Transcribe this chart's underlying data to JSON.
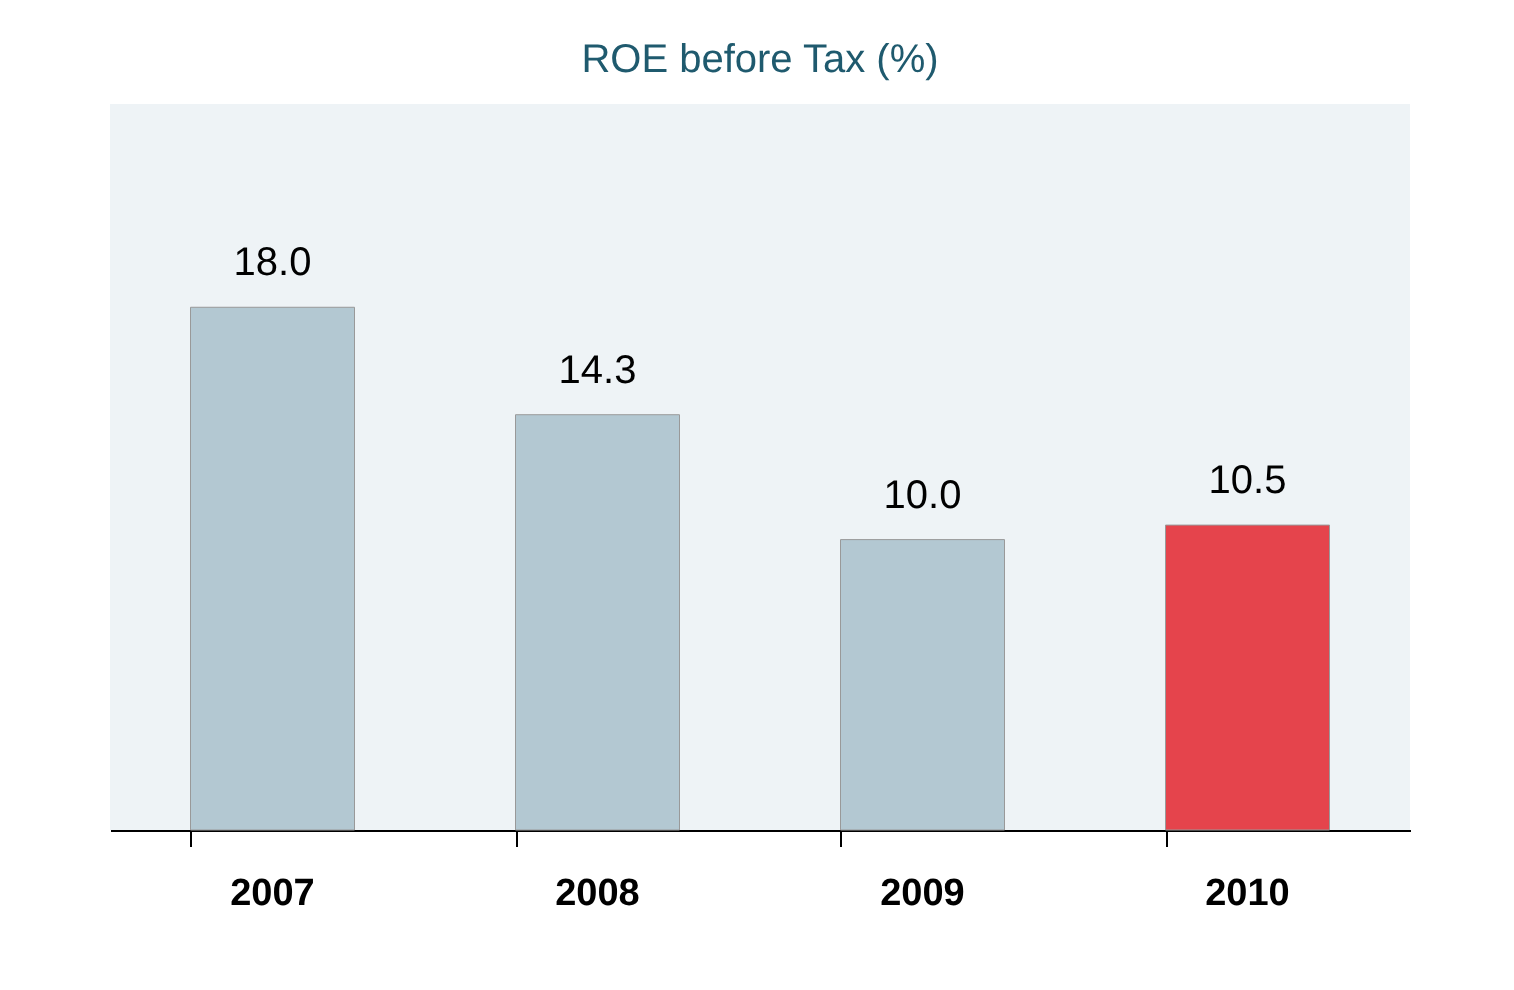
{
  "chart_data": {
    "type": "bar",
    "title": "ROE before Tax (%)",
    "categories": [
      "2007",
      "2008",
      "2009",
      "2010"
    ],
    "values": [
      18.0,
      14.3,
      10.0,
      10.5
    ],
    "colors": [
      "#b3c8d2",
      "#b3c8d2",
      "#b3c8d2",
      "#e5444c"
    ],
    "value_labels": [
      "18.0",
      "14.3",
      "10.0",
      "10.5"
    ],
    "ylim": [
      0,
      25
    ],
    "grid": false,
    "tick_labels": "x"
  }
}
